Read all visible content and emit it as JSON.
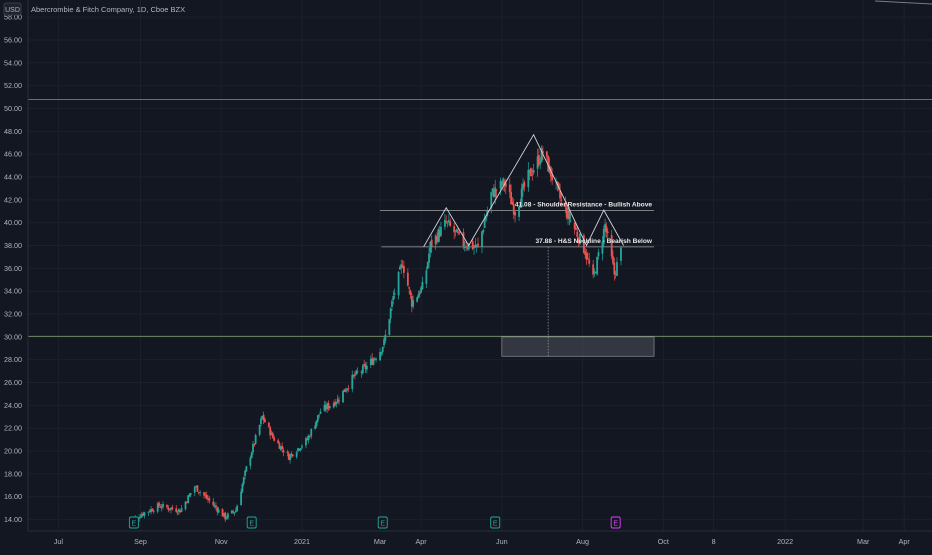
{
  "header": {
    "currency": "USD",
    "symbol_title": "Abercrombie & Fitch Company, 1D, Cboe BZX"
  },
  "colors": {
    "background": "#131722",
    "up": "#26a69a",
    "down": "#ef5350",
    "axis_text": "#b2b5be",
    "annotation_line": "#c8c8c8",
    "support_line": "#8fae7a",
    "target_box": "#5d6068"
  },
  "chart_data": {
    "type": "candlestick",
    "title": "Abercrombie & Fitch Company, 1D, Cboe BZX",
    "currency": "USD",
    "ylim": [
      13,
      59.5
    ],
    "y_ticks": [
      "14.00",
      "16.00",
      "18.00",
      "20.00",
      "22.00",
      "24.00",
      "26.00",
      "28.00",
      "30.00",
      "32.00",
      "34.00",
      "36.00",
      "38.00",
      "40.00",
      "42.00",
      "44.00",
      "46.00",
      "48.00",
      "50.00",
      "52.00",
      "54.00",
      "56.00",
      "58.00"
    ],
    "x_ticks": [
      {
        "label": "Jul",
        "date": "2020-07-01"
      },
      {
        "label": "Sep",
        "date": "2020-09-01"
      },
      {
        "label": "Nov",
        "date": "2020-11-01"
      },
      {
        "label": "2021",
        "date": "2021-01-01"
      },
      {
        "label": "Mar",
        "date": "2021-03-01"
      },
      {
        "label": "Apr",
        "date": "2021-04-01"
      },
      {
        "label": "Jun",
        "date": "2021-06-01"
      },
      {
        "label": "Aug",
        "date": "2021-08-01"
      },
      {
        "label": "Oct",
        "date": "2021-10-01"
      },
      {
        "label": "8",
        "date": "2021-11-08"
      },
      {
        "label": "2022",
        "date": "2022-01-01"
      },
      {
        "label": "Mar",
        "date": "2022-03-01"
      },
      {
        "label": "Apr",
        "date": "2022-04-01"
      }
    ],
    "x_range": [
      "2020-06-08",
      "2022-04-22"
    ],
    "price_path": [
      [
        "2020-08-24",
        13.8
      ],
      [
        "2020-09-02",
        14.5
      ],
      [
        "2020-09-15",
        15.2
      ],
      [
        "2020-10-01",
        14.8
      ],
      [
        "2020-10-12",
        16.9
      ],
      [
        "2020-10-26",
        15.3
      ],
      [
        "2020-11-04",
        14.2
      ],
      [
        "2020-11-12",
        14.8
      ],
      [
        "2020-11-20",
        18.5
      ],
      [
        "2020-12-02",
        23.0
      ],
      [
        "2020-12-10",
        21.2
      ],
      [
        "2020-12-22",
        19.5
      ],
      [
        "2021-01-05",
        21.0
      ],
      [
        "2021-01-15",
        23.5
      ],
      [
        "2021-01-28",
        24.5
      ],
      [
        "2021-02-09",
        26.5
      ],
      [
        "2021-02-20",
        27.5
      ],
      [
        "2021-03-01",
        28.8
      ],
      [
        "2021-03-04",
        29.5
      ],
      [
        "2021-03-11",
        33.5
      ],
      [
        "2021-03-18",
        36.5
      ],
      [
        "2021-03-25",
        33.0
      ],
      [
        "2021-04-03",
        34.5
      ],
      [
        "2021-04-08",
        38.0
      ],
      [
        "2021-04-20",
        40.0
      ],
      [
        "2021-05-03",
        38.2
      ],
      [
        "2021-05-14",
        37.8
      ],
      [
        "2021-05-24",
        42.5
      ],
      [
        "2021-06-03",
        43.5
      ],
      [
        "2021-06-11",
        41.0
      ],
      [
        "2021-06-21",
        44.0
      ],
      [
        "2021-07-02",
        46.2
      ],
      [
        "2021-07-09",
        44.0
      ],
      [
        "2021-07-16",
        41.8
      ],
      [
        "2021-07-26",
        39.5
      ],
      [
        "2021-08-03",
        37.5
      ],
      [
        "2021-08-09",
        35.0
      ],
      [
        "2021-08-18",
        39.8
      ],
      [
        "2021-08-25",
        35.5
      ],
      [
        "2021-08-31",
        37.9
      ]
    ],
    "head_and_shoulders": {
      "points": [
        [
          "2021-04-03",
          37.9
        ],
        [
          "2021-04-20",
          41.3
        ],
        [
          "2021-05-07",
          38.0
        ],
        [
          "2021-06-25",
          47.7
        ],
        [
          "2021-08-04",
          38.0
        ],
        [
          "2021-08-17",
          41.1
        ],
        [
          "2021-09-01",
          38.0
        ]
      ]
    },
    "levels": [
      {
        "price": 41.08,
        "label": "41.08 - Shoulder Resistance - Bullish Above",
        "from": "2021-03-01",
        "to": "2021-09-24"
      },
      {
        "price": 37.88,
        "label": "37.88 - H&S Neckline - Bearish Below",
        "from": "2021-03-02",
        "to": "2021-09-24"
      },
      {
        "price": 50.8,
        "label": "",
        "from": "2020-06-08",
        "to": "2022-04-22"
      },
      {
        "price": 30.05,
        "label": "",
        "from": "2020-06-08",
        "to": "2022-04-22"
      }
    ],
    "target_zone": {
      "from_date": "2021-06-01",
      "to_date": "2021-09-24",
      "price_top": 30.0,
      "price_bottom": 28.3
    },
    "measure_line": {
      "date": "2021-07-06",
      "from_price": 37.88,
      "to_price": 28.3
    },
    "earnings_markers": [
      {
        "label": "E",
        "date": "2020-08-27",
        "reported": true
      },
      {
        "label": "E",
        "date": "2020-11-24",
        "reported": true
      },
      {
        "label": "E",
        "date": "2021-03-03",
        "reported": true
      },
      {
        "label": "E",
        "date": "2021-05-27",
        "reported": true
      },
      {
        "label": "E",
        "date": "2021-08-26",
        "reported": false
      }
    ]
  }
}
